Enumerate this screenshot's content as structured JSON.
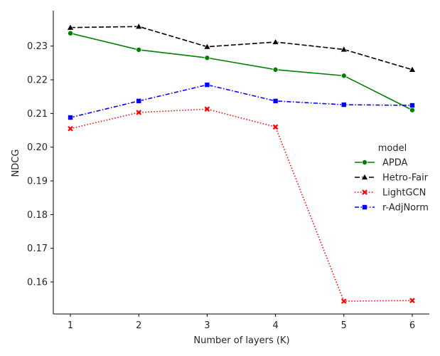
{
  "chart_data": {
    "type": "line",
    "title": "",
    "xlabel": "Number of layers (K)",
    "ylabel": "NDCG",
    "x": [
      1,
      2,
      3,
      4,
      5,
      6
    ],
    "xlim": [
      0.75,
      6.25
    ],
    "ylim": [
      0.1505,
      0.2405
    ],
    "yticks": [
      0.16,
      0.17,
      0.18,
      0.19,
      0.2,
      0.21,
      0.22,
      0.23
    ],
    "ytick_labels": [
      "0.16",
      "0.17",
      "0.18",
      "0.19",
      "0.20",
      "0.21",
      "0.22",
      "0.23"
    ],
    "xtick_labels": [
      "1",
      "2",
      "3",
      "4",
      "5",
      "6"
    ],
    "legend": {
      "title": "model",
      "position": "center-right"
    },
    "series": [
      {
        "name": "APDA",
        "values": [
          0.2338,
          0.2289,
          0.2265,
          0.223,
          0.2212,
          0.211
        ],
        "color": "#008000",
        "dash": "solid",
        "marker": "circle"
      },
      {
        "name": "Hetro-Fair",
        "values": [
          0.2355,
          0.2358,
          0.2298,
          0.2312,
          0.229,
          0.223
        ],
        "color": "#000000",
        "dash": "dashed",
        "marker": "triangle"
      },
      {
        "name": "LightGCN",
        "values": [
          0.2055,
          0.2103,
          0.2113,
          0.206,
          0.1543,
          0.1545
        ],
        "color": "#ff0000",
        "dash": "dotted",
        "marker": "x"
      },
      {
        "name": "r-AdjNorm",
        "values": [
          0.2088,
          0.2137,
          0.2185,
          0.2137,
          0.2126,
          0.2124
        ],
        "color": "#0000ff",
        "dash": "dashdot",
        "marker": "square"
      }
    ]
  }
}
